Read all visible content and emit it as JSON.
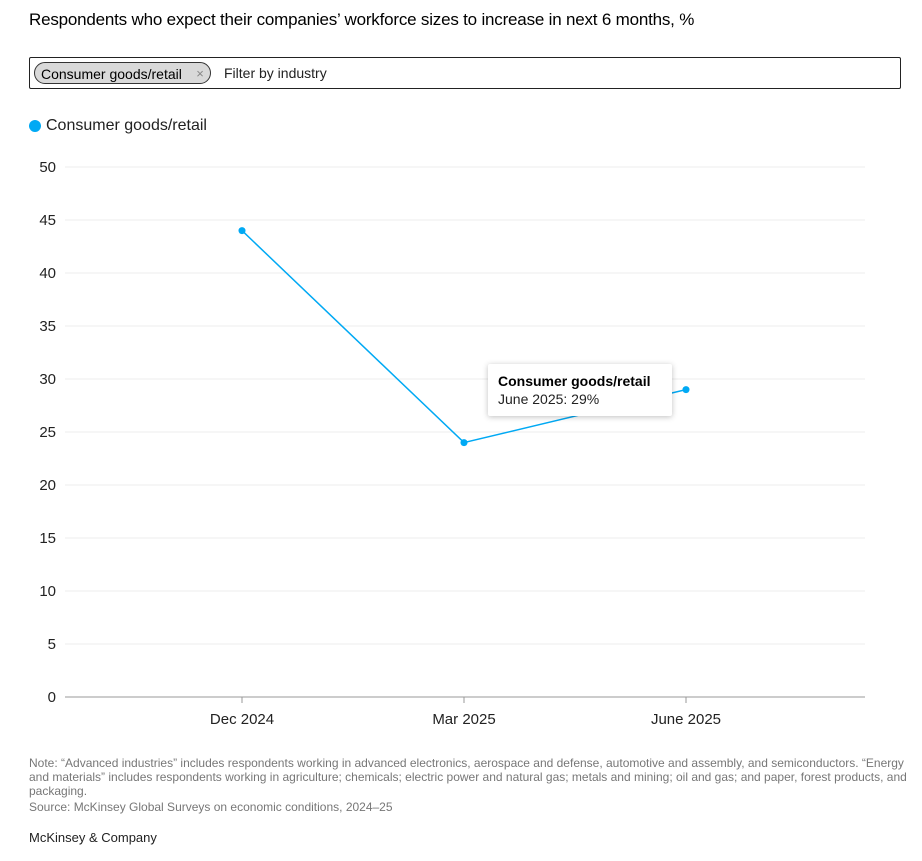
{
  "header": {
    "title": "Respondents who expect their companies’ workforce sizes to increase in next 6 months,",
    "title_unit": "%"
  },
  "filter": {
    "selected_chip": "Consumer goods/retail",
    "chip_close_glyph": "×",
    "placeholder": "Filter by industry"
  },
  "legend": {
    "items": [
      {
        "label": "Consumer goods/retail",
        "color": "#00a9f4"
      }
    ]
  },
  "tooltip": {
    "title": "Consumer goods/retail",
    "value_text": "June 2025: 29%"
  },
  "footer": {
    "note": "Note: “Advanced industries” includes respondents working in advanced electronics, aerospace and defense, automotive and assembly, and semiconductors. “Energy and materials” includes respondents working in agriculture; chemicals; electric power and natural gas; metals and mining; oil and gas; and paper, forest products, and packaging.",
    "source": "Source: McKinsey Global Surveys on economic conditions, 2024–25",
    "brand": "McKinsey & Company"
  },
  "chart_data": {
    "type": "line",
    "categories": [
      "Dec 2024",
      "Mar 2025",
      "June 2025"
    ],
    "series": [
      {
        "name": "Consumer goods/retail",
        "values": [
          44,
          24,
          29
        ],
        "color": "#00a9f4"
      }
    ],
    "ylim": [
      0,
      50
    ],
    "yticks": [
      0,
      5,
      10,
      15,
      20,
      25,
      30,
      35,
      40,
      45,
      50
    ],
    "grid": true,
    "legend_position": "top-left"
  }
}
